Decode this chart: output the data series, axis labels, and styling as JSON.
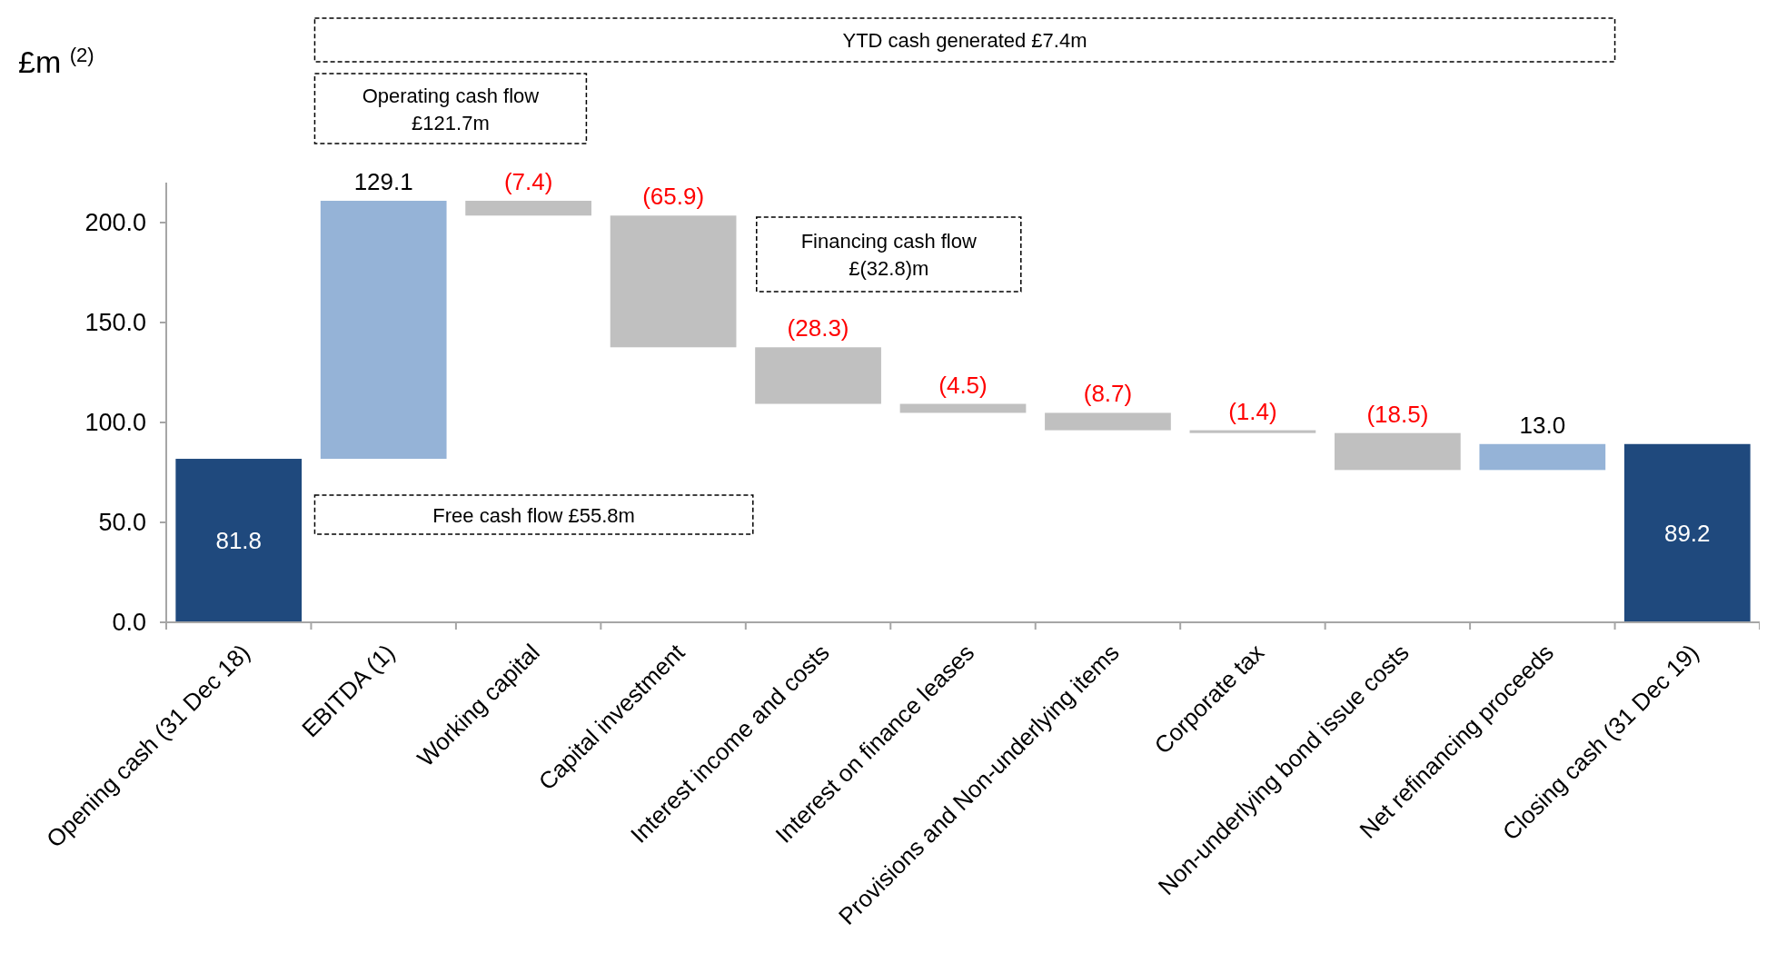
{
  "chart_data": {
    "type": "bar",
    "ylabel": "£m $^{(2)}$",
    "categories": [
      "Opening cash (31 Dec 18)",
      "EBITDA (1)",
      "Working capital",
      "Capital investment",
      "Interest income and costs",
      "Interest on finance leases",
      "Provisions and Non-underlying items",
      "Corporate tax",
      "Non-underlying bond issue costs",
      "Net refinancing proceeds",
      "Closing cash (31 Dec 19)"
    ],
    "values": [
      81.8,
      129.1,
      -7.4,
      -65.9,
      -28.3,
      -4.5,
      -8.7,
      -1.4,
      -18.5,
      13.0,
      89.2
    ],
    "base": [
      0,
      81.8,
      210.9,
      203.5,
      137.6,
      109.3,
      104.8,
      96.1,
      94.7,
      76.2,
      0
    ],
    "colors": [
      "#1f497d",
      "#95b3d7",
      "#c0c0c0",
      "#c0c0c0",
      "#c0c0c0",
      "#c0c0c0",
      "#c0c0c0",
      "#c0c0c0",
      "#c0c0c0",
      "#95b3d7",
      "#1f497d"
    ],
    "value_labels": [
      "81.8",
      "129.1",
      "(7.4)",
      "(65.9)",
      "(28.3)",
      "(4.5)",
      "(8.7)",
      "(1.4)",
      "(18.5)",
      "13.0",
      "89.2"
    ],
    "ylim": [
      0,
      220
    ],
    "yticks": [
      {
        "value": 0,
        "label": "0.0"
      },
      {
        "value": 50,
        "label": "50.0"
      },
      {
        "value": 100,
        "label": "100.0"
      },
      {
        "value": 150,
        "label": "150.0"
      },
      {
        "value": 200,
        "label": "200.0"
      }
    ],
    "annotations": [
      "YTD cash generated £7.4m",
      "Operating cash flow\n£121.7m",
      "Financing cash flow\n£(32.8)m",
      "Free cash flow £55.8m"
    ]
  }
}
